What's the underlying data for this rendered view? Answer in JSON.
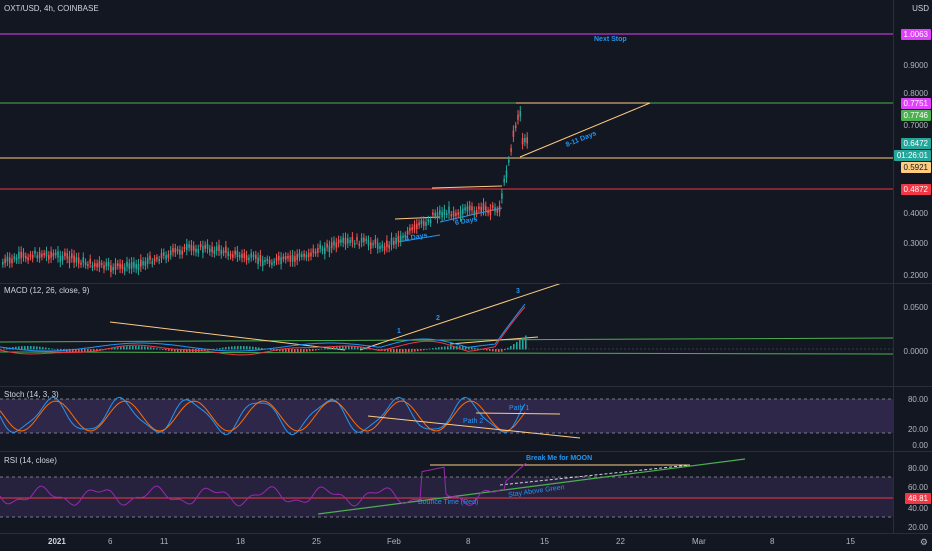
{
  "header": {
    "symbol": "OXT/USD, 4h, COINBASE",
    "currency": "USD"
  },
  "price_pane": {
    "ticks": [
      "0.9000",
      "0.8000",
      "0.7000",
      "0.4000",
      "0.3000",
      "0.2000"
    ],
    "badges": {
      "next_stop": "1.0063",
      "resistance": "0.7751",
      "high": "0.7746",
      "last": "0.6472",
      "countdown": "01:26:01",
      "support": "0.5921",
      "low_support": "0.4872"
    },
    "annotations": {
      "next_stop": "Next Stop",
      "days_a": "8-11 Days",
      "days_b": "6 Days",
      "days_c": "4 Days"
    }
  },
  "macd_pane": {
    "title": "MACD (12, 26, close, 9)",
    "ticks": [
      "0.0500",
      "0.0000"
    ],
    "annotations": {
      "w1": "1",
      "w2": "2",
      "w3": "3"
    }
  },
  "stoch_pane": {
    "title": "Stoch (14, 3, 3)",
    "ticks": [
      "80.00",
      "20.00",
      "0.00"
    ],
    "annotations": {
      "path1": "Path 1",
      "path2": "Path 2"
    }
  },
  "rsi_pane": {
    "title": "RSI (14, close)",
    "ticks": [
      "80.00",
      "60.00",
      "40.00",
      "20.00"
    ],
    "badge": "48.81",
    "annotations": {
      "break": "Break Me for MOON",
      "stay": "Stay Above Green",
      "bounce": "Bounce Time (Red)"
    }
  },
  "time_axis": {
    "labels": [
      "2021",
      "6",
      "11",
      "18",
      "25",
      "Feb",
      "8",
      "15",
      "22",
      "Mar",
      "8",
      "15"
    ]
  },
  "colors": {
    "bg": "#131722",
    "up": "#26a69a",
    "down": "#ef5350",
    "green": "#4caf50",
    "red": "#f23645",
    "magenta": "#e040fb",
    "orange": "#ffcc80",
    "blue": "#2196f3"
  }
}
